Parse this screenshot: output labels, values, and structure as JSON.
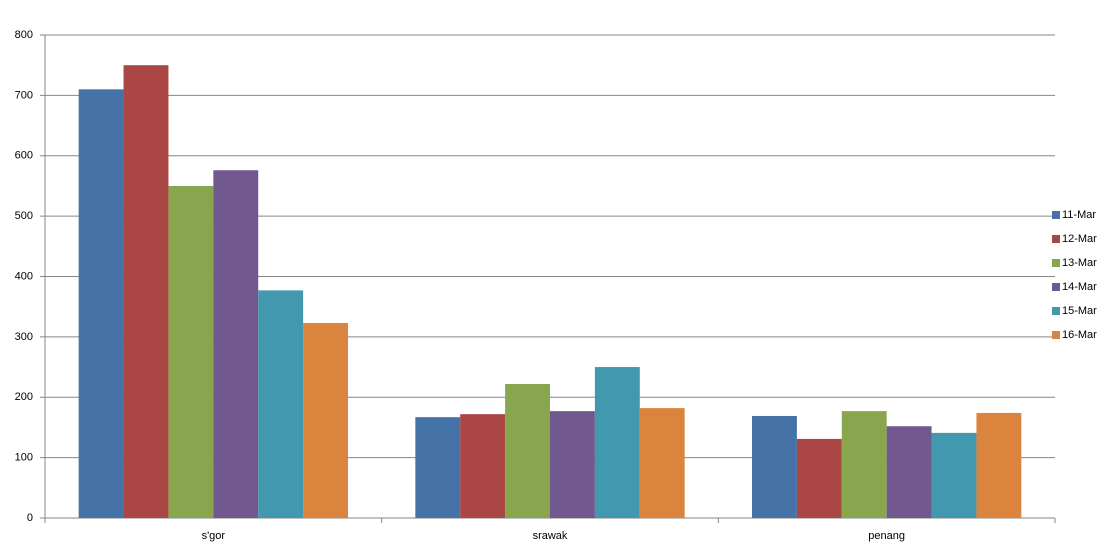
{
  "chart_data": {
    "type": "bar",
    "categories": [
      "s'gor",
      "srawak",
      "penang"
    ],
    "series": [
      {
        "name": "11-Mar",
        "color": "#4572a7",
        "values": [
          710,
          167,
          169
        ]
      },
      {
        "name": "12-Mar",
        "color": "#aa4643",
        "values": [
          750,
          172,
          131
        ]
      },
      {
        "name": "13-Mar",
        "color": "#89a54e",
        "values": [
          550,
          222,
          177
        ]
      },
      {
        "name": "14-Mar",
        "color": "#71588f",
        "values": [
          576,
          177,
          152
        ]
      },
      {
        "name": "15-Mar",
        "color": "#4198af",
        "values": [
          377,
          250,
          141
        ]
      },
      {
        "name": "16-Mar",
        "color": "#db843d",
        "values": [
          323,
          182,
          174
        ]
      }
    ],
    "ylim": [
      0,
      800
    ],
    "yticks": [
      0,
      100,
      200,
      300,
      400,
      500,
      600,
      700,
      800
    ],
    "grid": true,
    "legend": "right"
  }
}
